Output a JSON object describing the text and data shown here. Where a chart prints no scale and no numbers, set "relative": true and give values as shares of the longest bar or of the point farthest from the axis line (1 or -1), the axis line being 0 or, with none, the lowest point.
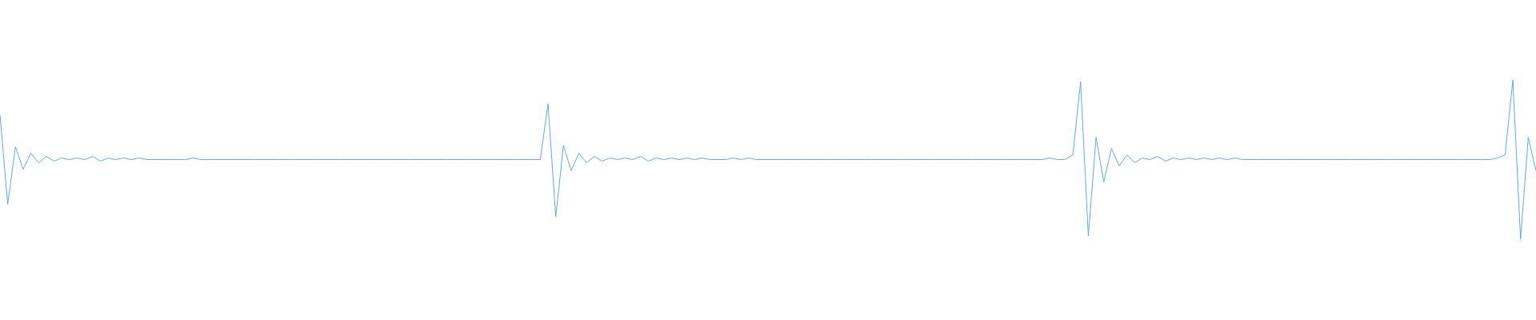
{
  "chart_data": {
    "type": "line",
    "relative": true,
    "categories": [
      null,
      null,
      null,
      null,
      null,
      null,
      null,
      null,
      null,
      null,
      null,
      null,
      null,
      null,
      null,
      null,
      null,
      null,
      null,
      null,
      null,
      null,
      null,
      null,
      null,
      null,
      null,
      null,
      null,
      null,
      null,
      null,
      null,
      null,
      null,
      null,
      null,
      null,
      null,
      null,
      null,
      null,
      null,
      null,
      null,
      null,
      null,
      null,
      null,
      null,
      null,
      null,
      null,
      null,
      null,
      null,
      null,
      null,
      null,
      null,
      null,
      null,
      null,
      null,
      null,
      null,
      null,
      null,
      null,
      null,
      null,
      null,
      null,
      null,
      null,
      null,
      null,
      null,
      null,
      null,
      null,
      null,
      null,
      null,
      null,
      null,
      null,
      null,
      null,
      null,
      null,
      null,
      null,
      null,
      null,
      null,
      null,
      null,
      null,
      null,
      null,
      null,
      null,
      null,
      null,
      null,
      null,
      null,
      null,
      null,
      null,
      null,
      null,
      null,
      null,
      null,
      null,
      null,
      null,
      null,
      null,
      null,
      null,
      null,
      null,
      null,
      null,
      null,
      null,
      null,
      null,
      null,
      null,
      null,
      null,
      null,
      null,
      null,
      null,
      null,
      null,
      null,
      null,
      null,
      null,
      null,
      null,
      null,
      null,
      null,
      null,
      null,
      null,
      null,
      null,
      null,
      null,
      null,
      null,
      null,
      null,
      null,
      null,
      null,
      null,
      null,
      null,
      null,
      null,
      null,
      null,
      null,
      null,
      null,
      null,
      null,
      null,
      null,
      null,
      null,
      null,
      null,
      null,
      null,
      null,
      null,
      null,
      null,
      null,
      null,
      null,
      null,
      null,
      null,
      null,
      null,
      null,
      null,
      null,
      null
    ],
    "series": [
      {
        "color": "#5dade2",
        "values": [
          0.78,
          0.22,
          0.58,
          0.44,
          0.54,
          0.48,
          0.52,
          0.49,
          0.51,
          0.5,
          0.51,
          0.5,
          0.52,
          0.49,
          0.51,
          0.5,
          0.51,
          0.5,
          0.51,
          0.5,
          0.5,
          0.5,
          0.5,
          0.5,
          0.5,
          0.51,
          0.5,
          0.5,
          0.5,
          0.5,
          0.5,
          0.5,
          0.5,
          0.5,
          0.5,
          0.5,
          0.5,
          0.5,
          0.5,
          0.5,
          0.5,
          0.5,
          0.5,
          0.5,
          0.5,
          0.5,
          0.5,
          0.5,
          0.5,
          0.5,
          0.5,
          0.5,
          0.5,
          0.5,
          0.5,
          0.5,
          0.5,
          0.5,
          0.5,
          0.5,
          0.5,
          0.5,
          0.5,
          0.5,
          0.5,
          0.5,
          0.5,
          0.5,
          0.5,
          0.5,
          0.5,
          0.85,
          0.14,
          0.59,
          0.43,
          0.54,
          0.48,
          0.52,
          0.49,
          0.51,
          0.5,
          0.51,
          0.5,
          0.52,
          0.49,
          0.51,
          0.5,
          0.51,
          0.5,
          0.51,
          0.5,
          0.51,
          0.5,
          0.5,
          0.5,
          0.51,
          0.5,
          0.51,
          0.5,
          0.5,
          0.5,
          0.5,
          0.5,
          0.5,
          0.5,
          0.5,
          0.5,
          0.5,
          0.5,
          0.5,
          0.5,
          0.5,
          0.5,
          0.5,
          0.5,
          0.5,
          0.5,
          0.5,
          0.5,
          0.5,
          0.5,
          0.5,
          0.5,
          0.5,
          0.5,
          0.5,
          0.5,
          0.5,
          0.5,
          0.5,
          0.5,
          0.5,
          0.5,
          0.5,
          0.5,
          0.5,
          0.51,
          0.5,
          0.5,
          0.53,
          0.99,
          0.02,
          0.64,
          0.36,
          0.57,
          0.46,
          0.53,
          0.48,
          0.51,
          0.5,
          0.52,
          0.49,
          0.51,
          0.5,
          0.51,
          0.5,
          0.51,
          0.5,
          0.51,
          0.5,
          0.51,
          0.5,
          0.5,
          0.5,
          0.5,
          0.5,
          0.5,
          0.5,
          0.5,
          0.5,
          0.5,
          0.5,
          0.5,
          0.5,
          0.5,
          0.5,
          0.5,
          0.5,
          0.5,
          0.5,
          0.5,
          0.5,
          0.5,
          0.5,
          0.5,
          0.5,
          0.5,
          0.5,
          0.5,
          0.5,
          0.5,
          0.5,
          0.5,
          0.5,
          0.51,
          0.53,
          1,
          0,
          0.64,
          0.43
        ]
      }
    ]
  }
}
